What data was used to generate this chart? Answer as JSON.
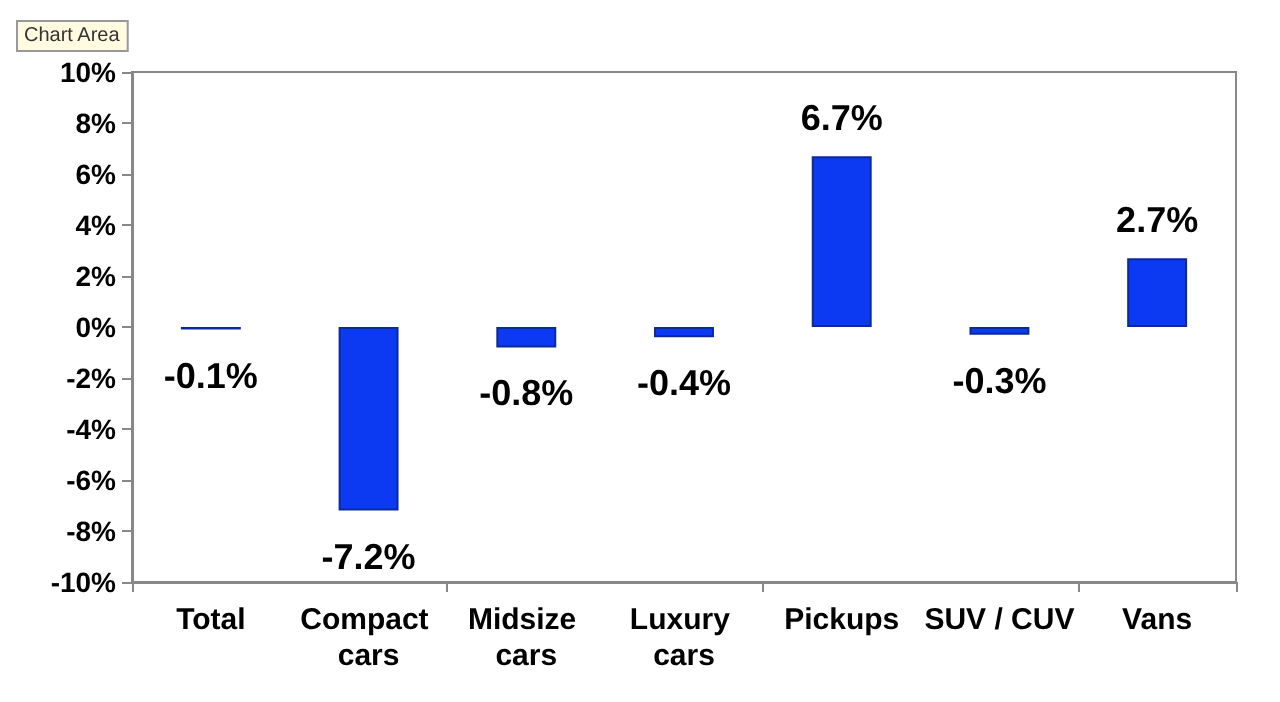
{
  "chart_data": {
    "type": "bar",
    "categories": [
      "Total",
      "Compact cars",
      "Midsize cars",
      "Luxury cars",
      "Pickups",
      "SUV / CUV",
      "Vans"
    ],
    "values": [
      -0.1,
      -7.2,
      -0.8,
      -0.4,
      6.7,
      -0.3,
      2.7
    ],
    "value_labels": [
      "-0.1%",
      "-7.2%",
      "-0.8%",
      "-0.4%",
      "6.7%",
      "-0.3%",
      "2.7%"
    ],
    "color": "#0b3af2",
    "ylim": [
      -10,
      10
    ],
    "yticks": [
      {
        "value": -10,
        "label": "-10%"
      },
      {
        "value": -8,
        "label": "-8%"
      },
      {
        "value": -6,
        "label": "-6%"
      },
      {
        "value": -4,
        "label": "-4%"
      },
      {
        "value": -2,
        "label": "-2%"
      },
      {
        "value": 0,
        "label": "0%"
      },
      {
        "value": 2,
        "label": "2%"
      },
      {
        "value": 4,
        "label": "4%"
      },
      {
        "value": 6,
        "label": "6%"
      },
      {
        "value": 8,
        "label": "8%"
      },
      {
        "value": 10,
        "label": "10%"
      }
    ],
    "grid": false,
    "annotations": [
      "Chart Area"
    ]
  }
}
